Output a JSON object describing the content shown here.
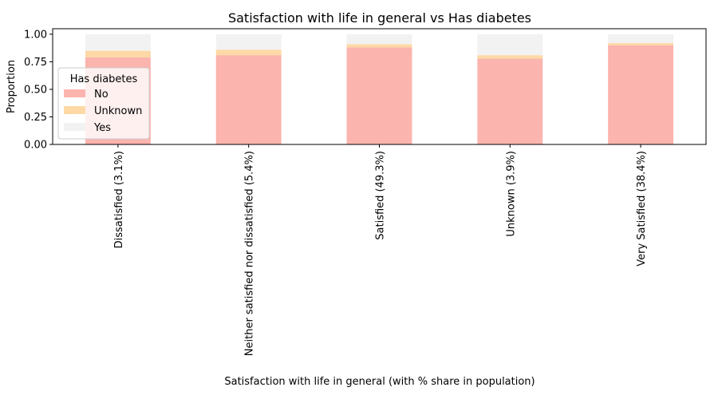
{
  "chart_data": {
    "type": "bar",
    "stacked": true,
    "title": "Satisfaction with life in general  vs Has diabetes",
    "xlabel": "Satisfaction with life in general  (with % share in population)",
    "ylabel": "Proportion",
    "ylim": [
      0,
      1.05
    ],
    "yticks": [
      "0.00",
      "0.25",
      "0.50",
      "0.75",
      "1.00"
    ],
    "grid": false,
    "categories": [
      "Dissatisfied (3.1%)",
      "Neither satisfied nor dissatisfied (5.4%)",
      "Satisfied (49.3%)",
      "Unknown (3.9%)",
      "Very Satisfied (38.4%)"
    ],
    "series": [
      {
        "name": "No",
        "color": "#fbb4ae",
        "values": [
          0.79,
          0.81,
          0.88,
          0.78,
          0.9
        ]
      },
      {
        "name": "Unknown",
        "color": "#fed9a6",
        "values": [
          0.06,
          0.05,
          0.03,
          0.03,
          0.02
        ]
      },
      {
        "name": "Yes",
        "color": "#f2f2f2",
        "values": [
          0.15,
          0.14,
          0.09,
          0.19,
          0.08
        ]
      }
    ],
    "legend": {
      "title": "Has diabetes",
      "placement": "center-left"
    }
  }
}
